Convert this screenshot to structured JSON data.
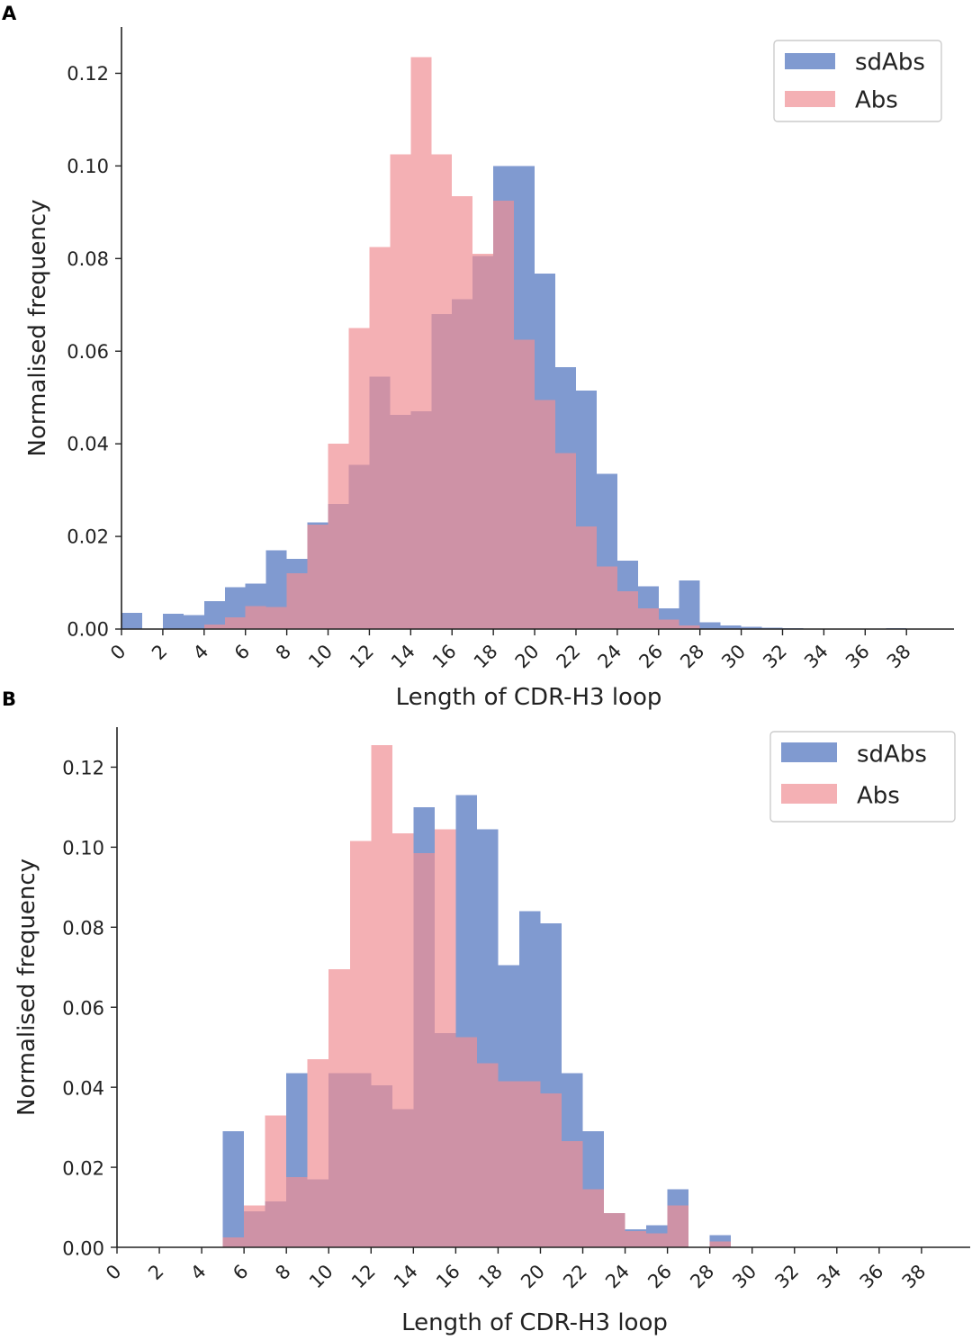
{
  "chart_data": [
    {
      "panel": "A",
      "type": "bar",
      "title": "",
      "xlabel": "Length of CDR-H3 loop",
      "ylabel": "Normalised frequency",
      "xlim": [
        0,
        40
      ],
      "ylim": [
        0,
        0.13
      ],
      "bin_width": 1,
      "xticks": [
        0,
        2,
        4,
        6,
        8,
        10,
        12,
        14,
        16,
        18,
        20,
        22,
        24,
        26,
        28,
        30,
        32,
        34,
        36,
        38
      ],
      "yticks": [
        "0.00",
        "0.02",
        "0.04",
        "0.06",
        "0.08",
        "0.10",
        "0.12"
      ],
      "ytick_values": [
        0,
        0.02,
        0.04,
        0.06,
        0.08,
        0.1,
        0.12
      ],
      "legend": {
        "position": "top-right",
        "entries": [
          "sdAbs",
          "Abs"
        ]
      },
      "series": [
        {
          "name": "sdAbs",
          "color": "#6a88c8",
          "bins": [
            0,
            1,
            2,
            3,
            4,
            5,
            6,
            7,
            8,
            9,
            10,
            11,
            12,
            13,
            14,
            15,
            16,
            17,
            18,
            19,
            20,
            21,
            22,
            23,
            24,
            25,
            26,
            27,
            28,
            29,
            30,
            31,
            32,
            33,
            34,
            35,
            36,
            37,
            38,
            39
          ],
          "values": [
            0.0035,
            0,
            0.0033,
            0.003,
            0.006,
            0.009,
            0.0098,
            0.017,
            0.0152,
            0.023,
            0.027,
            0.0355,
            0.0545,
            0.0462,
            0.047,
            0.068,
            0.0712,
            0.0805,
            0.1,
            0.1,
            0.0768,
            0.0565,
            0.0515,
            0.0335,
            0.0148,
            0.0092,
            0.0045,
            0.0105,
            0.0015,
            0.0008,
            0.0005,
            0.0003,
            0.0002,
            0,
            0,
            0,
            0,
            0.0002,
            0,
            0
          ]
        },
        {
          "name": "Abs",
          "color": "#ef8f94",
          "bins": [
            0,
            1,
            2,
            3,
            4,
            5,
            6,
            7,
            8,
            9,
            10,
            11,
            12,
            13,
            14,
            15,
            16,
            17,
            18,
            19,
            20,
            21,
            22,
            23,
            24,
            25,
            26,
            27,
            28,
            29,
            30,
            31,
            32,
            33,
            34,
            35,
            36,
            37,
            38,
            39
          ],
          "values": [
            0,
            0,
            0,
            0,
            0.001,
            0.0025,
            0.005,
            0.0048,
            0.012,
            0.0225,
            0.04,
            0.065,
            0.0825,
            0.1025,
            0.1235,
            0.1025,
            0.0935,
            0.081,
            0.0925,
            0.0625,
            0.0495,
            0.038,
            0.0222,
            0.0135,
            0.0082,
            0.0045,
            0.002,
            0.0008,
            0,
            0,
            0,
            0,
            0,
            0,
            0,
            0,
            0,
            0,
            0,
            0
          ]
        }
      ]
    },
    {
      "panel": "B",
      "type": "bar",
      "title": "",
      "xlabel": "Length of CDR-H3 loop",
      "ylabel": "Normalised frequency",
      "xlim": [
        0,
        40
      ],
      "ylim": [
        0,
        0.13
      ],
      "bin_width": 1,
      "xticks": [
        0,
        2,
        4,
        6,
        8,
        10,
        12,
        14,
        16,
        18,
        20,
        22,
        24,
        26,
        28,
        30,
        32,
        34,
        36,
        38
      ],
      "yticks": [
        "0.00",
        "0.02",
        "0.04",
        "0.06",
        "0.08",
        "0.10",
        "0.12"
      ],
      "ytick_values": [
        0,
        0.02,
        0.04,
        0.06,
        0.08,
        0.1,
        0.12
      ],
      "legend": {
        "position": "top-right",
        "entries": [
          "sdAbs",
          "Abs"
        ]
      },
      "series": [
        {
          "name": "sdAbs",
          "color": "#6a88c8",
          "bins": [
            0,
            1,
            2,
            3,
            4,
            5,
            6,
            7,
            8,
            9,
            10,
            11,
            12,
            13,
            14,
            15,
            16,
            17,
            18,
            19,
            20,
            21,
            22,
            23,
            24,
            25,
            26,
            27,
            28,
            29,
            30,
            31,
            32,
            33,
            34,
            35,
            36,
            37,
            38,
            39
          ],
          "values": [
            0,
            0,
            0,
            0,
            0,
            0.029,
            0.009,
            0.0115,
            0.0435,
            0.017,
            0.0435,
            0.0435,
            0.0405,
            0.0345,
            0.11,
            0.0535,
            0.113,
            0.1045,
            0.0705,
            0.084,
            0.081,
            0.0435,
            0.029,
            0.0085,
            0.0045,
            0.0055,
            0.0145,
            0,
            0.003,
            0,
            0,
            0,
            0,
            0,
            0,
            0,
            0,
            0,
            0,
            0
          ]
        },
        {
          "name": "Abs",
          "color": "#ef8f94",
          "bins": [
            0,
            1,
            2,
            3,
            4,
            5,
            6,
            7,
            8,
            9,
            10,
            11,
            12,
            13,
            14,
            15,
            16,
            17,
            18,
            19,
            20,
            21,
            22,
            23,
            24,
            25,
            26,
            27,
            28,
            29,
            30,
            31,
            32,
            33,
            34,
            35,
            36,
            37,
            38,
            39
          ],
          "values": [
            0,
            0,
            0,
            0,
            0,
            0.0025,
            0.0105,
            0.033,
            0.0175,
            0.047,
            0.0695,
            0.1015,
            0.1255,
            0.1035,
            0.0985,
            0.1045,
            0.0525,
            0.046,
            0.0415,
            0.0415,
            0.0385,
            0.0265,
            0.0145,
            0.0085,
            0.004,
            0.0035,
            0.0105,
            0,
            0.0015,
            0,
            0,
            0,
            0,
            0,
            0,
            0,
            0,
            0,
            0,
            0
          ]
        }
      ]
    }
  ]
}
